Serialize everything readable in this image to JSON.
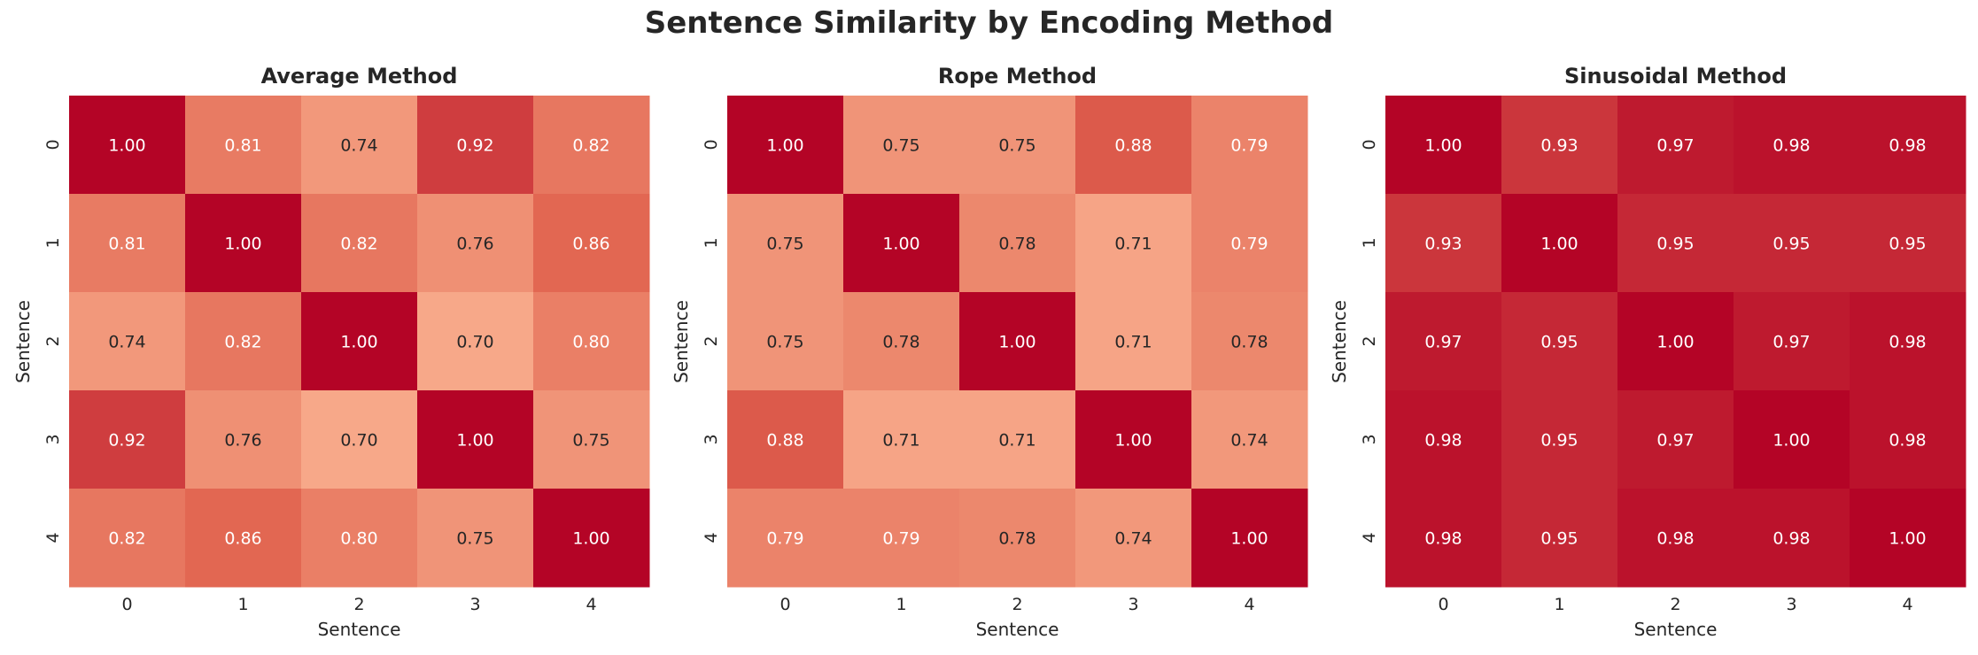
{
  "figure": {
    "title": "Sentence Similarity by Encoding Method"
  },
  "colors": {
    "low": "#f7a889",
    "high": "#b40426",
    "text_light": "#ffffff",
    "text_dark": "#262626",
    "color_scale": [
      0.7,
      1.0
    ]
  },
  "chart_data": [
    {
      "type": "heatmap",
      "title": "Average Method",
      "xlabel": "Sentence",
      "ylabel": "Sentence",
      "x_ticks": [
        "0",
        "1",
        "2",
        "3",
        "4"
      ],
      "y_ticks": [
        "0",
        "1",
        "2",
        "3",
        "4"
      ],
      "values": [
        [
          1.0,
          0.81,
          0.74,
          0.92,
          0.82
        ],
        [
          0.81,
          1.0,
          0.82,
          0.76,
          0.86
        ],
        [
          0.74,
          0.82,
          1.0,
          0.7,
          0.8
        ],
        [
          0.92,
          0.76,
          0.7,
          1.0,
          0.75
        ],
        [
          0.82,
          0.86,
          0.8,
          0.75,
          1.0
        ]
      ]
    },
    {
      "type": "heatmap",
      "title": "Rope Method",
      "xlabel": "Sentence",
      "ylabel": "Sentence",
      "x_ticks": [
        "0",
        "1",
        "2",
        "3",
        "4"
      ],
      "y_ticks": [
        "0",
        "1",
        "2",
        "3",
        "4"
      ],
      "values": [
        [
          1.0,
          0.75,
          0.75,
          0.88,
          0.79
        ],
        [
          0.75,
          1.0,
          0.78,
          0.71,
          0.79
        ],
        [
          0.75,
          0.78,
          1.0,
          0.71,
          0.78
        ],
        [
          0.88,
          0.71,
          0.71,
          1.0,
          0.74
        ],
        [
          0.79,
          0.79,
          0.78,
          0.74,
          1.0
        ]
      ]
    },
    {
      "type": "heatmap",
      "title": "Sinusoidal Method",
      "xlabel": "Sentence",
      "ylabel": "Sentence",
      "x_ticks": [
        "0",
        "1",
        "2",
        "3",
        "4"
      ],
      "y_ticks": [
        "0",
        "1",
        "2",
        "3",
        "4"
      ],
      "values": [
        [
          1.0,
          0.93,
          0.97,
          0.98,
          0.98
        ],
        [
          0.93,
          1.0,
          0.95,
          0.95,
          0.95
        ],
        [
          0.97,
          0.95,
          1.0,
          0.97,
          0.98
        ],
        [
          0.98,
          0.95,
          0.97,
          1.0,
          0.98
        ],
        [
          0.98,
          0.95,
          0.98,
          0.98,
          1.0
        ]
      ]
    }
  ]
}
